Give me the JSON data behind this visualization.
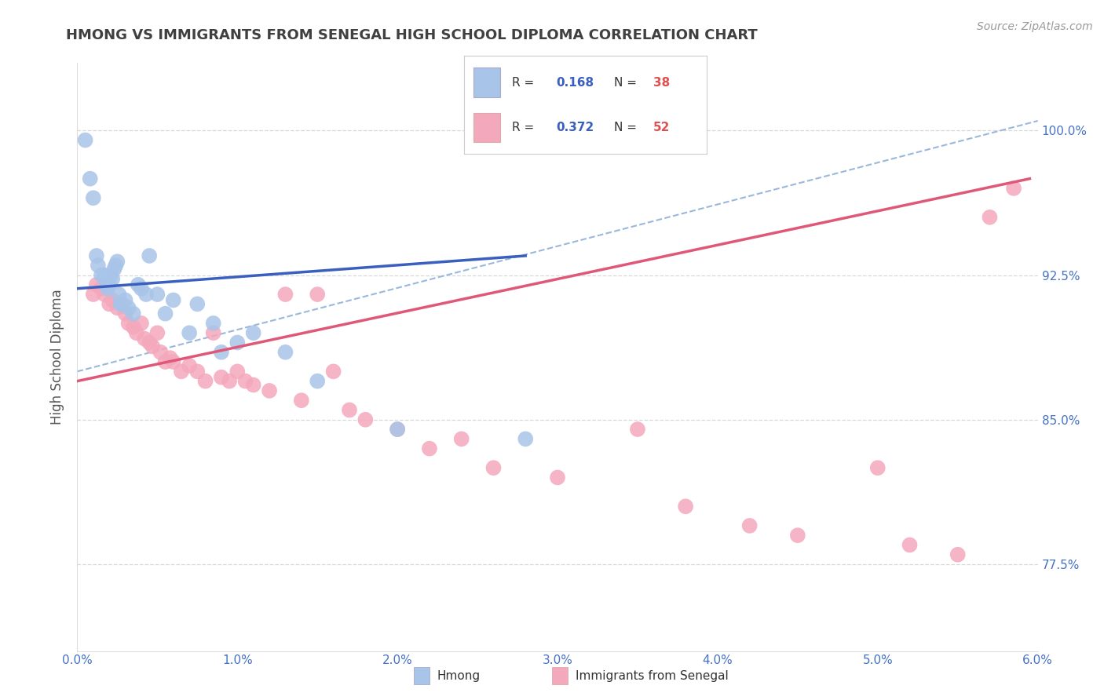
{
  "title": "HMONG VS IMMIGRANTS FROM SENEGAL HIGH SCHOOL DIPLOMA CORRELATION CHART",
  "source": "Source: ZipAtlas.com",
  "ylabel": "High School Diploma",
  "xmin": 0.0,
  "xmax": 6.0,
  "ymin": 73.0,
  "ymax": 103.5,
  "hmong_color": "#a8c4e8",
  "senegal_color": "#f4a8bc",
  "hmong_line_color": "#3a5fbf",
  "senegal_line_color": "#e05878",
  "dashed_line_color": "#90b0d8",
  "background_color": "#ffffff",
  "grid_color": "#d8d8d8",
  "title_color": "#404040",
  "axis_label_color": "#555555",
  "tick_color_blue": "#4472c4",
  "hmong_x": [
    0.05,
    0.08,
    0.1,
    0.12,
    0.13,
    0.15,
    0.17,
    0.18,
    0.19,
    0.2,
    0.21,
    0.22,
    0.23,
    0.24,
    0.25,
    0.26,
    0.27,
    0.28,
    0.3,
    0.32,
    0.35,
    0.38,
    0.4,
    0.43,
    0.45,
    0.5,
    0.55,
    0.6,
    0.7,
    0.75,
    0.85,
    0.9,
    1.0,
    1.1,
    1.3,
    1.5,
    2.0,
    2.8
  ],
  "hmong_y": [
    99.5,
    97.5,
    96.5,
    93.5,
    93.0,
    92.5,
    92.5,
    92.0,
    91.8,
    92.0,
    92.5,
    92.3,
    92.8,
    93.0,
    93.2,
    91.5,
    91.0,
    91.0,
    91.2,
    90.8,
    90.5,
    92.0,
    91.8,
    91.5,
    93.5,
    91.5,
    90.5,
    91.2,
    89.5,
    91.0,
    90.0,
    88.5,
    89.0,
    89.5,
    88.5,
    87.0,
    84.5,
    84.0
  ],
  "senegal_x": [
    0.1,
    0.12,
    0.15,
    0.17,
    0.2,
    0.22,
    0.25,
    0.27,
    0.3,
    0.32,
    0.35,
    0.37,
    0.4,
    0.42,
    0.45,
    0.47,
    0.5,
    0.52,
    0.55,
    0.58,
    0.6,
    0.65,
    0.7,
    0.75,
    0.8,
    0.85,
    0.9,
    0.95,
    1.0,
    1.05,
    1.1,
    1.2,
    1.3,
    1.4,
    1.5,
    1.6,
    1.7,
    1.8,
    2.0,
    2.2,
    2.4,
    2.6,
    3.0,
    3.5,
    3.8,
    4.2,
    4.5,
    5.0,
    5.2,
    5.5,
    5.7,
    5.85
  ],
  "senegal_y": [
    91.5,
    92.0,
    91.8,
    91.5,
    91.0,
    91.2,
    90.8,
    91.0,
    90.5,
    90.0,
    89.8,
    89.5,
    90.0,
    89.2,
    89.0,
    88.8,
    89.5,
    88.5,
    88.0,
    88.2,
    88.0,
    87.5,
    87.8,
    87.5,
    87.0,
    89.5,
    87.2,
    87.0,
    87.5,
    87.0,
    86.8,
    86.5,
    91.5,
    86.0,
    91.5,
    87.5,
    85.5,
    85.0,
    84.5,
    83.5,
    84.0,
    82.5,
    82.0,
    84.5,
    80.5,
    79.5,
    79.0,
    82.5,
    78.5,
    78.0,
    95.5,
    97.0
  ],
  "hmong_trend_x0": 0.0,
  "hmong_trend_x1": 2.8,
  "hmong_trend_y0": 91.8,
  "hmong_trend_y1": 93.5,
  "senegal_trend_x0": 0.0,
  "senegal_trend_x1": 5.95,
  "senegal_trend_y0": 87.0,
  "senegal_trend_y1": 97.5,
  "dash_x0": 0.0,
  "dash_x1": 6.0,
  "dash_y0": 87.5,
  "dash_y1": 100.5,
  "figsize": [
    14.06,
    8.92
  ],
  "dpi": 100
}
